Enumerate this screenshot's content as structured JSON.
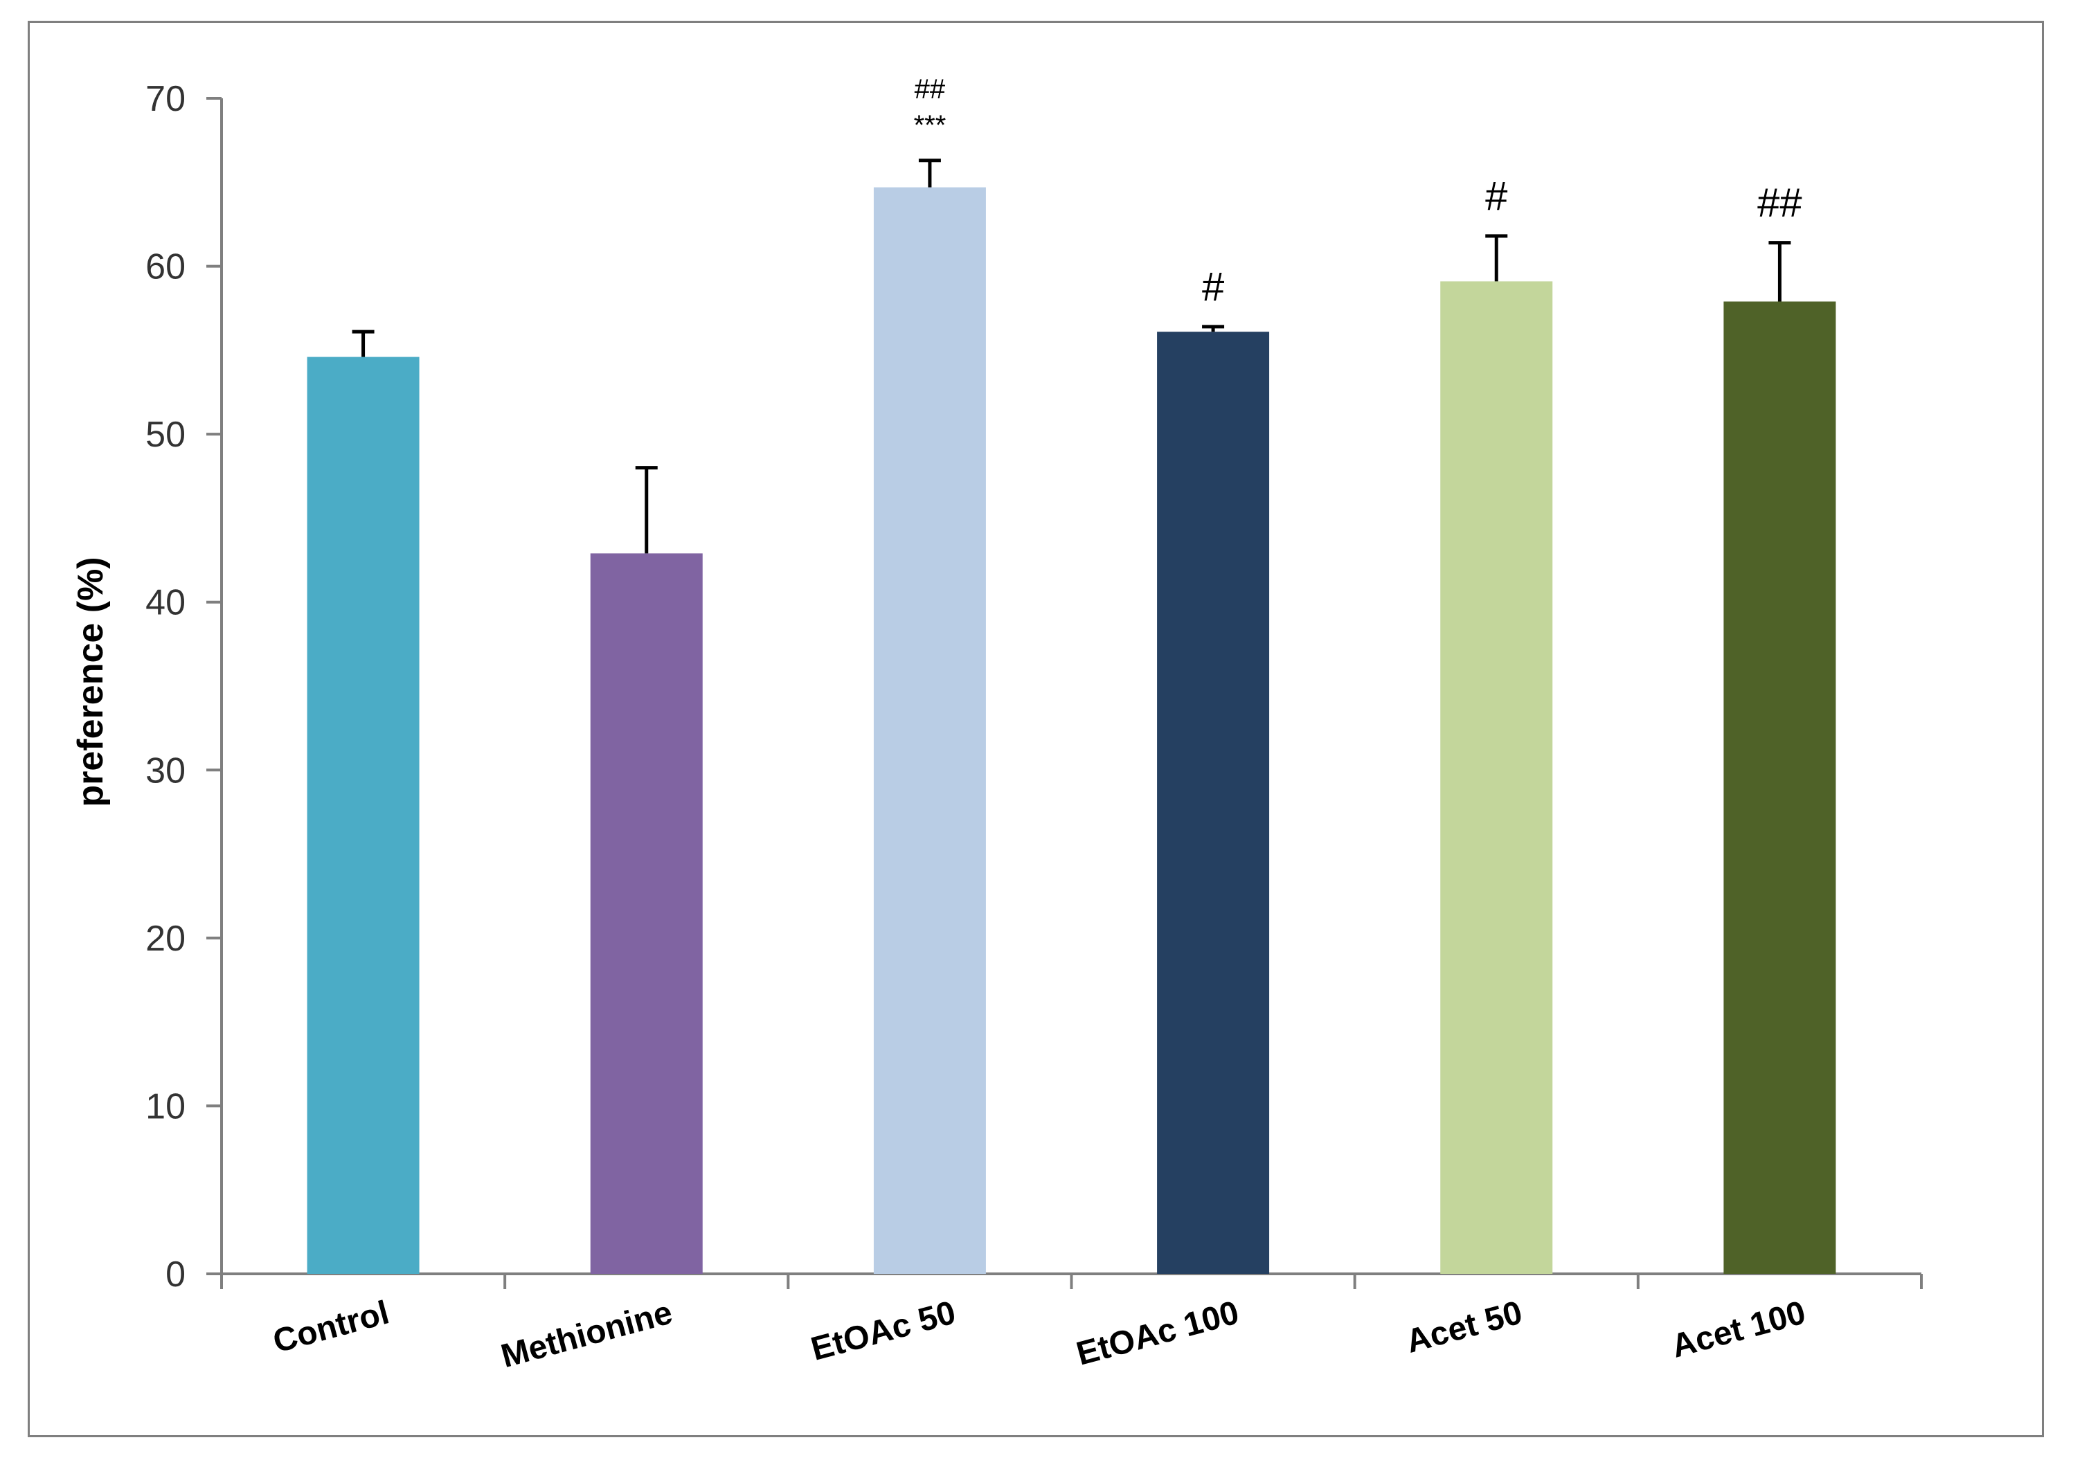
{
  "chart_data": {
    "type": "bar",
    "title": "",
    "xlabel": "",
    "ylabel": "preference (%)",
    "ylim": [
      0,
      70
    ],
    "yticks": [
      0,
      10,
      20,
      30,
      40,
      50,
      60,
      70
    ],
    "grid": false,
    "legend": "none",
    "categories": [
      "Control",
      "Methionine",
      "EtOAc 50",
      "EtOAc 100",
      "Acet 50",
      "Acet 100"
    ],
    "series": [
      {
        "values": [
          54.6,
          42.9,
          64.7,
          56.1,
          59.1,
          57.9
        ],
        "errors": [
          1.5,
          5.1,
          1.6,
          0.3,
          2.7,
          3.5
        ],
        "colors": [
          "#4BACC6",
          "#8064A2",
          "#B9CDE5",
          "#254061",
          "#C3D69B",
          "#4F6228"
        ]
      }
    ],
    "annotations": [
      {
        "category": "EtOAc 50",
        "lines": [
          "##",
          "***"
        ]
      },
      {
        "category": "EtOAc 100",
        "lines": [
          "#"
        ]
      },
      {
        "category": "Acet 50",
        "lines": [
          "#"
        ]
      },
      {
        "category": "Acet 100",
        "lines": [
          "##"
        ]
      }
    ]
  }
}
